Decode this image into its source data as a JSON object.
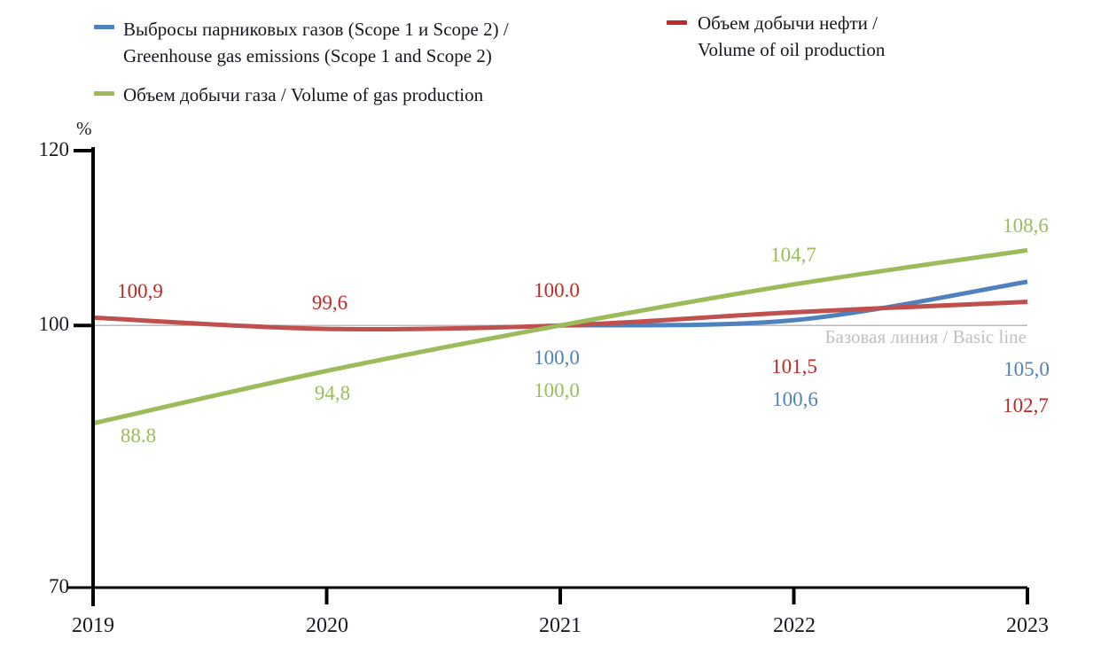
{
  "chart_data": {
    "type": "line",
    "unit_label": "%",
    "x": [
      2019,
      2020,
      2021,
      2022,
      2023
    ],
    "x_tick_labels": [
      "2019",
      "2020",
      "2021",
      "2022",
      "2023"
    ],
    "y_ticks": [
      70,
      100,
      120
    ],
    "y_tick_labels": [
      "70",
      "100",
      "120"
    ],
    "ylim": [
      70,
      120
    ],
    "grid": false,
    "legend_position": "top",
    "baseline": {
      "value": 100,
      "label": "Базовая линия / Basic line",
      "line_color": "#b3b3b3",
      "text_color": "#c0c0c0"
    },
    "axis_color": "#000000",
    "series": [
      {
        "id": "emissions",
        "name": "Выбросы парниковых газов (Scope 1 и Scope 2) / Greenhouse gas emissions (Scope 1 and Scope 2)",
        "color": "#4F81BD",
        "values": [
          null,
          null,
          100.0,
          100.6,
          105.0
        ],
        "point_labels": [
          null,
          null,
          "100,0",
          "100,6",
          "105,0"
        ]
      },
      {
        "id": "oil",
        "name": "Объем добычи нефти / Volume of oil production",
        "color": "#C0504D",
        "label_color": "#BC2B27",
        "values": [
          100.9,
          99.6,
          100.0,
          101.5,
          102.7
        ],
        "point_labels": [
          "100,9",
          "99,6",
          "100.0",
          "101,5",
          "102,7"
        ]
      },
      {
        "id": "gas",
        "name": "Объем добычи газа / Volume of gas production",
        "color": "#9CBB5B",
        "values": [
          88.8,
          94.8,
          100.0,
          104.7,
          108.6
        ],
        "point_labels": [
          "88.8",
          "94,8",
          "100,0",
          "104,7",
          "108,6"
        ]
      }
    ]
  },
  "legend": {
    "emissions": {
      "line1": "Выбросы парниковых газов (Scope 1 и Scope 2) /",
      "line2": "Greenhouse gas emissions (Scope 1 and Scope 2)"
    },
    "oil": {
      "line1": "Объем добычи нефти /",
      "line2": "Volume of oil production"
    },
    "gas": {
      "line1": "Объем добычи газа / Volume of gas production"
    }
  }
}
